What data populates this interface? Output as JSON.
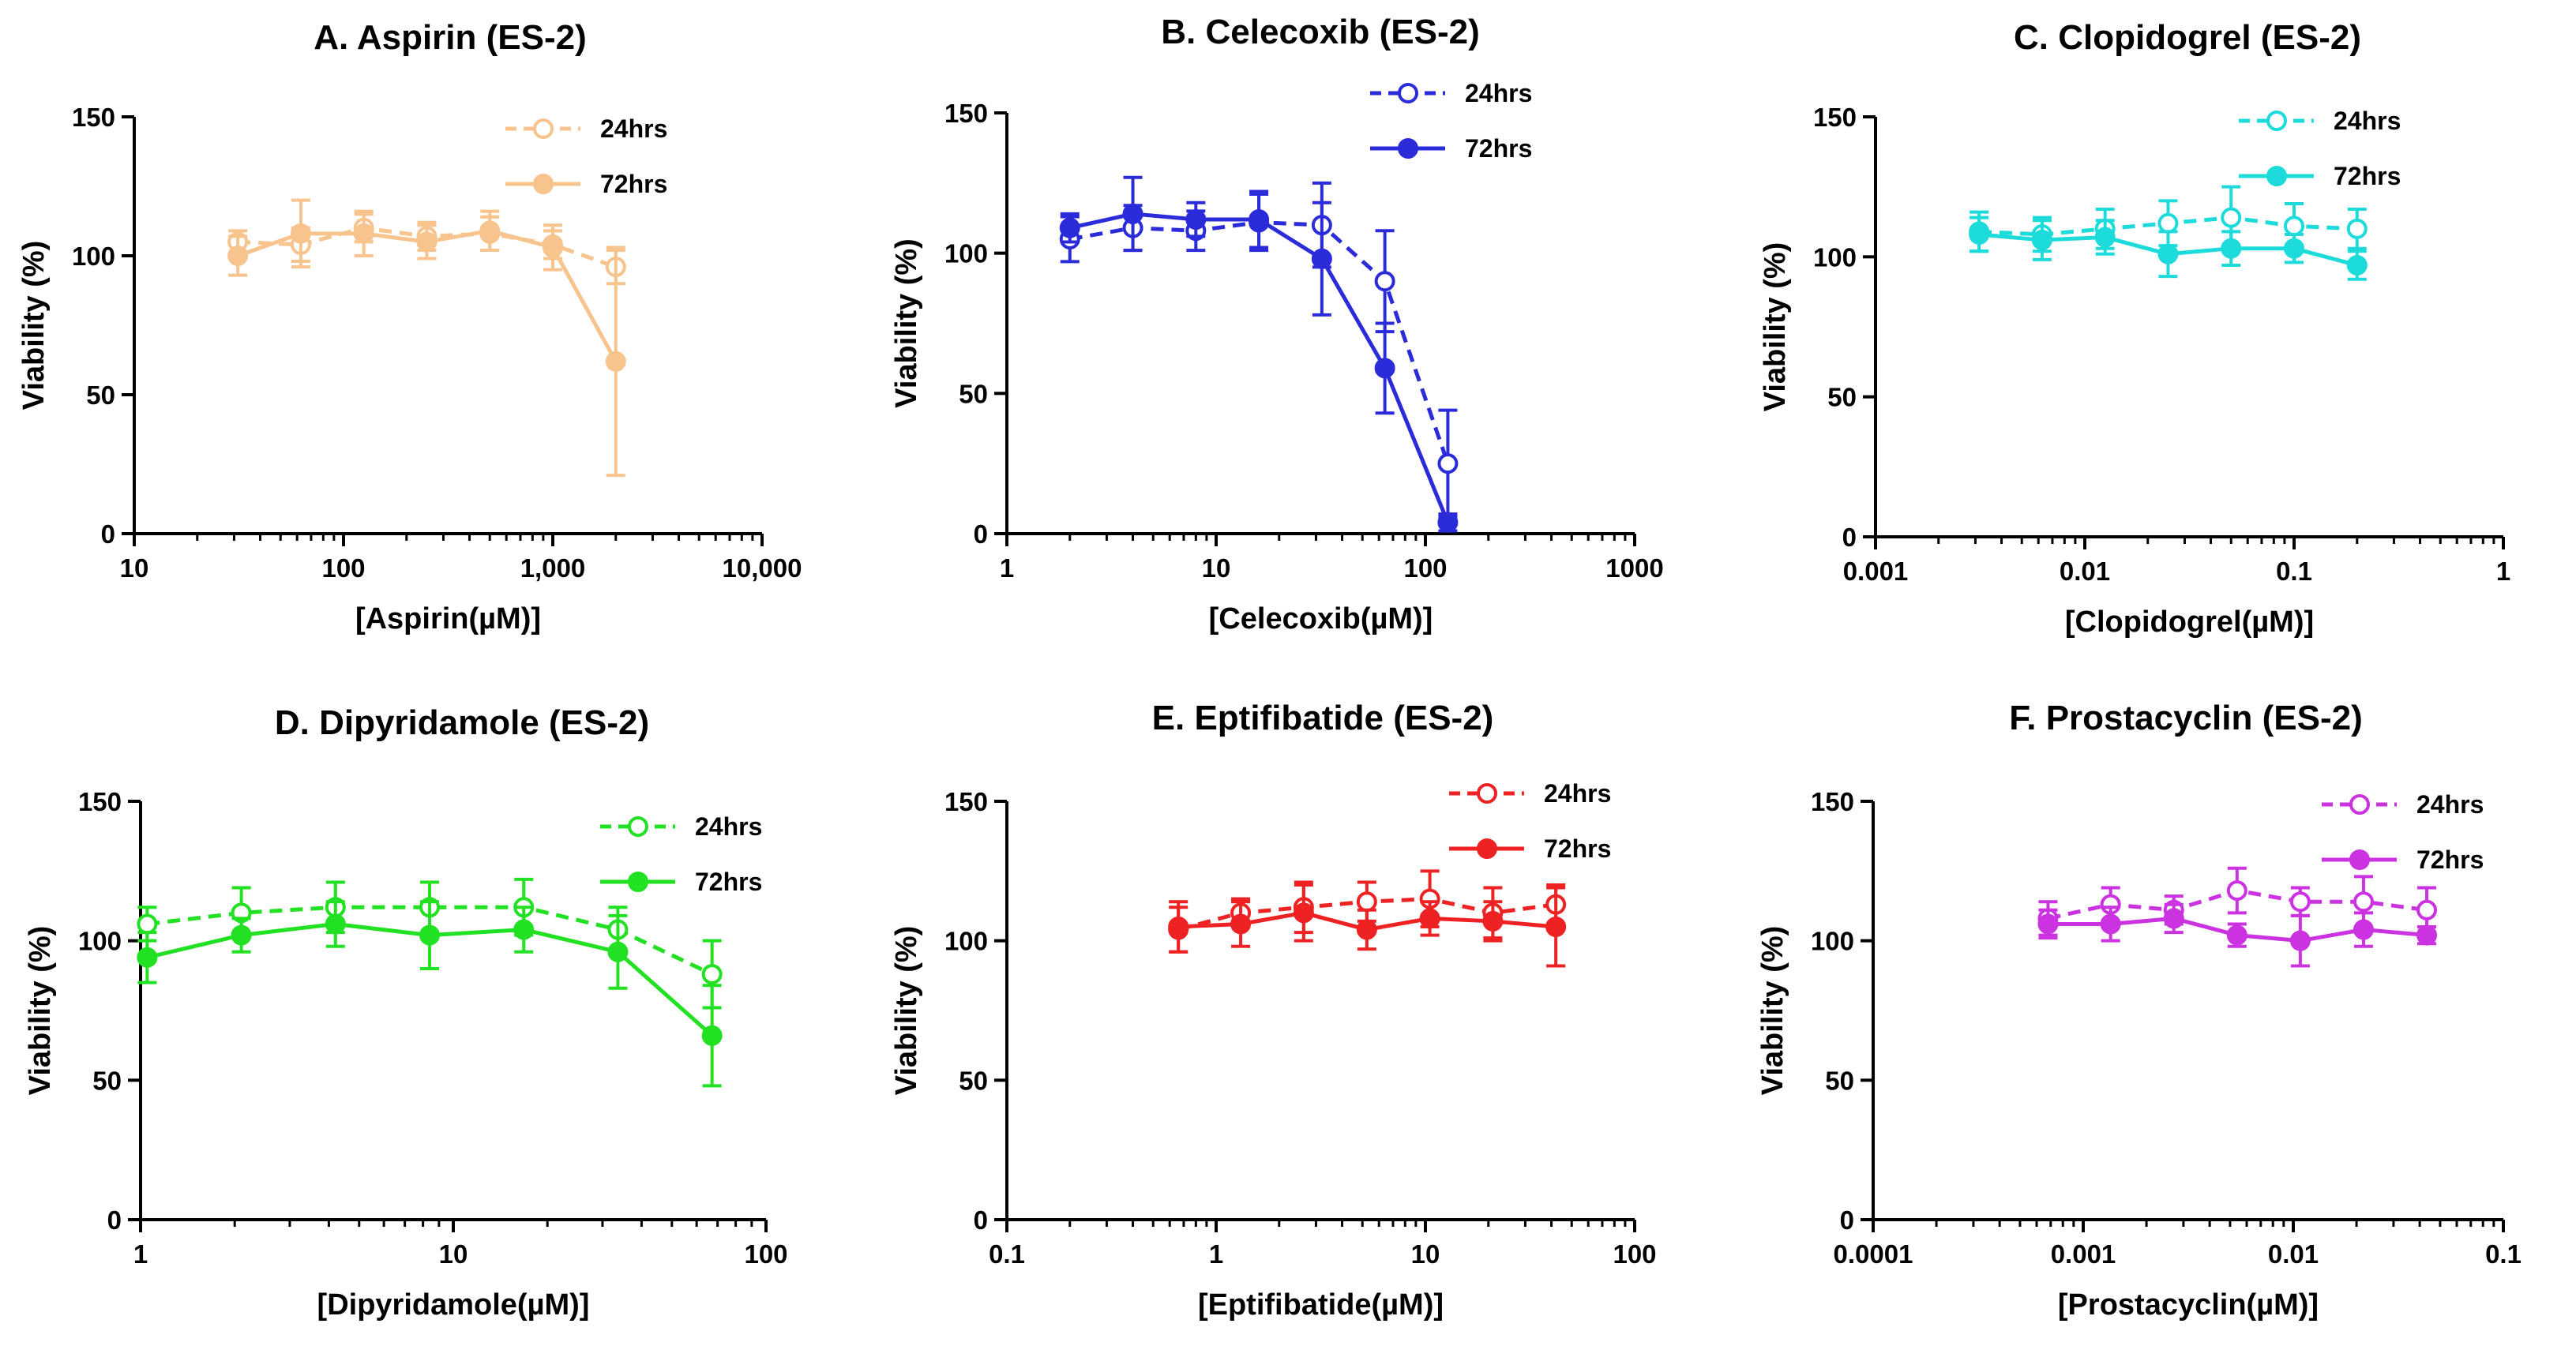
{
  "chart_data": [
    {
      "type": "scatter",
      "panel": "A",
      "title": "A. Aspirin  (ES-2)",
      "xlabel": "[Aspirin(µM)]",
      "ylabel": "Viability (%)",
      "xscale": "log",
      "xlim": [
        10,
        10000
      ],
      "xticks": [
        10,
        100,
        1000,
        10000
      ],
      "xtick_labels": [
        "10",
        "100",
        "1,000",
        "10,000"
      ],
      "ylim": [
        0,
        150
      ],
      "yticks": [
        0,
        50,
        100,
        150
      ],
      "ytick_labels": [
        "0",
        "50",
        "100",
        "150"
      ],
      "color": "#F8C48E",
      "legend_position": "top-right",
      "series": [
        {
          "name": "24hrs",
          "style": "dashed-open",
          "x": [
            31.25,
            62.5,
            125,
            250,
            500,
            1000,
            2000
          ],
          "values": [
            105,
            104,
            110,
            107,
            108,
            104,
            96
          ],
          "errors": [
            4,
            6,
            5,
            5,
            6,
            5,
            6
          ]
        },
        {
          "name": "72hrs",
          "style": "solid-filled",
          "x": [
            31.25,
            62.5,
            125,
            250,
            500,
            1000,
            2000
          ],
          "values": [
            100,
            108,
            108,
            105,
            109,
            103,
            62
          ],
          "errors": [
            7,
            12,
            8,
            6,
            7,
            8,
            41
          ]
        }
      ]
    },
    {
      "type": "scatter",
      "panel": "B",
      "title": "B. Celecoxib  (ES-2)",
      "xlabel": "[Celecoxib(µM)]",
      "ylabel": "Viability (%)",
      "xscale": "log",
      "xlim": [
        1,
        1000
      ],
      "xticks": [
        1,
        10,
        100,
        1000
      ],
      "xtick_labels": [
        "1",
        "10",
        "100",
        "1000"
      ],
      "ylim": [
        0,
        150
      ],
      "yticks": [
        0,
        50,
        100,
        150
      ],
      "ytick_labels": [
        "0",
        "50",
        "100",
        "150"
      ],
      "color": "#2B2BD9",
      "legend_position": "top-right",
      "series": [
        {
          "name": "24hrs",
          "style": "dashed-open",
          "x": [
            2,
            4,
            8,
            16,
            32,
            64,
            128
          ],
          "values": [
            105,
            109,
            108,
            111,
            110,
            90,
            25
          ],
          "errors": [
            8,
            8,
            7,
            10,
            15,
            18,
            19
          ]
        },
        {
          "name": "72hrs",
          "style": "solid-filled",
          "x": [
            2,
            4,
            8,
            16,
            32,
            64,
            128
          ],
          "values": [
            109,
            114,
            112,
            112,
            98,
            59,
            4
          ],
          "errors": [
            5,
            13,
            6,
            10,
            20,
            16,
            3
          ]
        }
      ]
    },
    {
      "type": "scatter",
      "panel": "C",
      "title": "C. Clopidogrel  (ES-2)",
      "xlabel": "[Clopidogrel(µM)]",
      "ylabel": "Viability (%)",
      "xscale": "log",
      "xlim": [
        0.001,
        1
      ],
      "xticks": [
        0.001,
        0.01,
        0.1,
        1
      ],
      "xtick_labels": [
        "0.001",
        "0.01",
        "0.1",
        "1"
      ],
      "ylim": [
        0,
        150
      ],
      "yticks": [
        0,
        50,
        100,
        150
      ],
      "ytick_labels": [
        "0",
        "50",
        "100",
        "150"
      ],
      "color": "#1EDBDB",
      "legend_position": "top-right",
      "series": [
        {
          "name": "24hrs",
          "style": "dashed-open",
          "x": [
            0.003125,
            0.00625,
            0.0125,
            0.025,
            0.05,
            0.1,
            0.2
          ],
          "values": [
            109,
            108,
            110,
            112,
            114,
            111,
            110
          ],
          "errors": [
            7,
            6,
            7,
            8,
            11,
            8,
            7
          ]
        },
        {
          "name": "72hrs",
          "style": "solid-filled",
          "x": [
            0.003125,
            0.00625,
            0.0125,
            0.025,
            0.05,
            0.1,
            0.2
          ],
          "values": [
            108,
            106,
            107,
            101,
            103,
            103,
            97
          ],
          "errors": [
            6,
            7,
            6,
            8,
            6,
            5,
            5
          ]
        }
      ]
    },
    {
      "type": "scatter",
      "panel": "D",
      "title": "D. Dipyridamole (ES-2)",
      "xlabel": "[Dipyridamole(µM)]",
      "ylabel": "Viability (%)",
      "xscale": "log",
      "xlim": [
        1,
        100
      ],
      "xticks": [
        1,
        10,
        100
      ],
      "xtick_labels": [
        "1",
        "10",
        "100"
      ],
      "ylim": [
        0,
        150
      ],
      "yticks": [
        0,
        50,
        100,
        150
      ],
      "ytick_labels": [
        "0",
        "50",
        "100",
        "150"
      ],
      "color": "#22E022",
      "legend_position": "top-right",
      "series": [
        {
          "name": "24hrs",
          "style": "dashed-open",
          "x": [
            1.05,
            2.1,
            4.2,
            8.4,
            16.8,
            33.6,
            67.2
          ],
          "values": [
            106,
            110,
            112,
            112,
            112,
            104,
            88
          ],
          "errors": [
            6,
            9,
            9,
            9,
            10,
            8,
            12
          ]
        },
        {
          "name": "72hrs",
          "style": "solid-filled",
          "x": [
            1.05,
            2.1,
            4.2,
            8.4,
            16.8,
            33.6,
            67.2
          ],
          "values": [
            94,
            102,
            106,
            102,
            104,
            96,
            66
          ],
          "errors": [
            9,
            6,
            8,
            12,
            8,
            13,
            18
          ]
        }
      ]
    },
    {
      "type": "scatter",
      "panel": "E",
      "title": "E. Eptifibatide  (ES-2)",
      "xlabel": "[Eptifibatide(µM)]",
      "ylabel": "Viability (%)",
      "xscale": "log",
      "xlim": [
        0.1,
        100
      ],
      "xticks": [
        0.1,
        1,
        10,
        100
      ],
      "xtick_labels": [
        "0.1",
        "1",
        "10",
        "100"
      ],
      "ylim": [
        0,
        150
      ],
      "yticks": [
        0,
        50,
        100,
        150
      ],
      "ytick_labels": [
        "0",
        "50",
        "100",
        "150"
      ],
      "color": "#EE2222",
      "legend_position": "top-right",
      "series": [
        {
          "name": "24hrs",
          "style": "dashed-open",
          "x": [
            0.66,
            1.31,
            2.62,
            5.25,
            10.5,
            21,
            42
          ],
          "values": [
            104,
            110,
            112,
            114,
            115,
            110,
            113
          ],
          "errors": [
            8,
            5,
            9,
            7,
            10,
            9,
            7
          ]
        },
        {
          "name": "72hrs",
          "style": "solid-filled",
          "x": [
            0.66,
            1.31,
            2.62,
            5.25,
            10.5,
            21,
            42
          ],
          "values": [
            105,
            106,
            110,
            104,
            108,
            107,
            105
          ],
          "errors": [
            9,
            8,
            10,
            7,
            6,
            7,
            14
          ]
        }
      ]
    },
    {
      "type": "scatter",
      "panel": "F",
      "title": "F. Prostacyclin (ES-2)",
      "xlabel": "[Prostacyclin(µM)]",
      "ylabel": "Viability (%)",
      "xscale": "log",
      "xlim": [
        0.0001,
        0.1
      ],
      "xticks": [
        0.0001,
        0.001,
        0.01,
        0.1
      ],
      "xtick_labels": [
        "0.0001",
        "0.001",
        "0.01",
        "0.1"
      ],
      "ylim": [
        0,
        150
      ],
      "yticks": [
        0,
        50,
        100,
        150
      ],
      "ytick_labels": [
        "0",
        "50",
        "100",
        "150"
      ],
      "color": "#CC33E0",
      "legend_position": "top-right",
      "series": [
        {
          "name": "24hrs",
          "style": "dashed-open",
          "x": [
            0.00068,
            0.00135,
            0.0027,
            0.0054,
            0.0108,
            0.0216,
            0.0432
          ],
          "values": [
            108,
            113,
            111,
            118,
            114,
            114,
            111
          ],
          "errors": [
            6,
            6,
            5,
            8,
            5,
            9,
            8
          ]
        },
        {
          "name": "72hrs",
          "style": "solid-filled",
          "x": [
            0.00068,
            0.00135,
            0.0027,
            0.0054,
            0.0108,
            0.0216,
            0.0432
          ],
          "values": [
            106,
            106,
            108,
            102,
            100,
            104,
            102
          ],
          "errors": [
            5,
            6,
            5,
            4,
            9,
            6,
            3
          ]
        }
      ]
    }
  ]
}
